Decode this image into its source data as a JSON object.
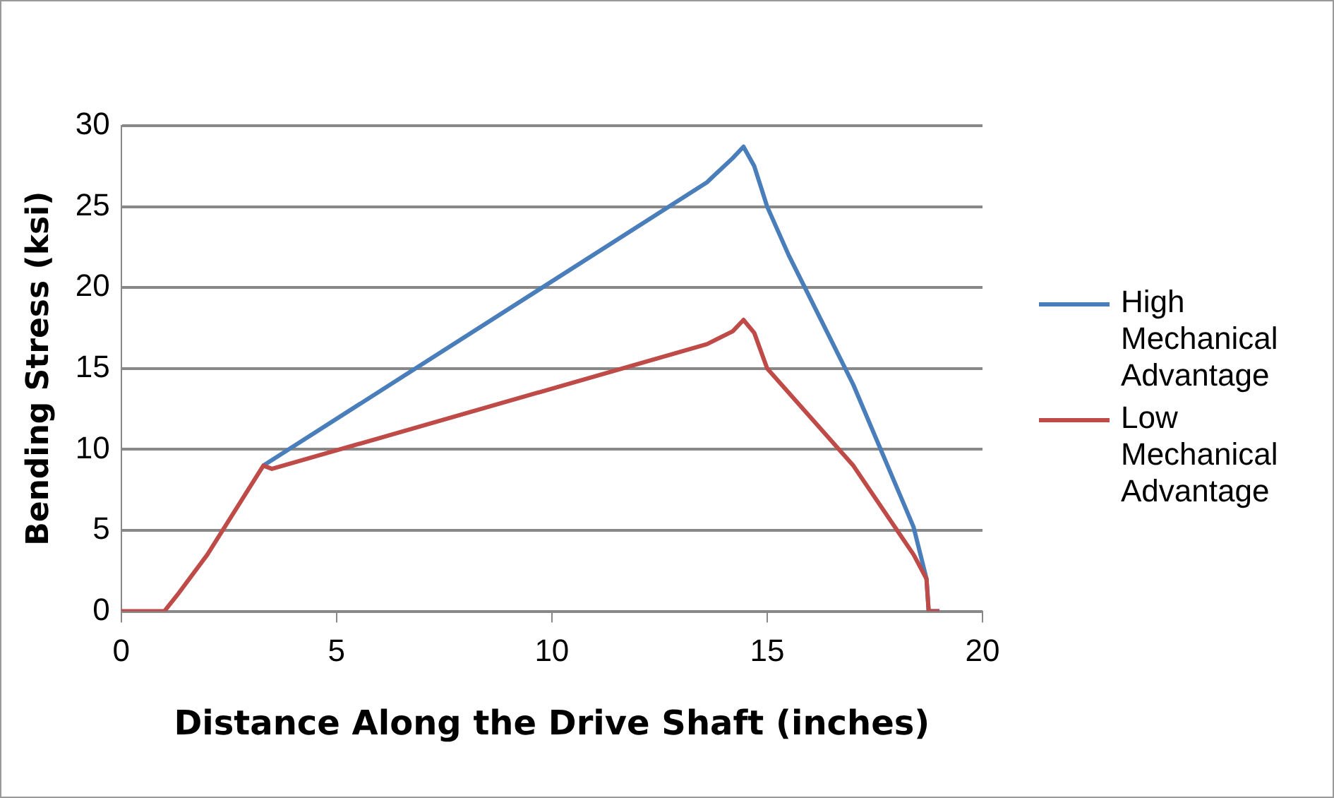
{
  "chart_data": {
    "type": "line",
    "xlabel": "Distance Along the Drive Shaft (inches)",
    "ylabel": "Bending Stress (ksi)",
    "xlim": [
      0,
      20
    ],
    "xticks": [
      0,
      5,
      10,
      15,
      20
    ],
    "ylim": [
      0,
      30
    ],
    "yticks": [
      0,
      5,
      10,
      15,
      20,
      25,
      30
    ],
    "grid": "y",
    "legend": "right",
    "marker": "none",
    "line_style": "solid",
    "series": [
      {
        "name": "High Mechanical Advantage",
        "color": "#4a7ebb",
        "x": [
          3.3,
          13.6,
          14.2,
          14.45,
          14.7,
          15,
          15.5,
          17,
          18.4,
          18.7,
          18.75,
          19
        ],
        "values": [
          9,
          26.5,
          28,
          28.7,
          27.5,
          25,
          22,
          14,
          5.2,
          2,
          0,
          0
        ]
      },
      {
        "name": "Low Mechanical Advantage",
        "color": "#be4b48",
        "x": [
          0,
          1,
          1.3,
          2,
          3.3,
          3.5,
          13.6,
          14.2,
          14.45,
          14.7,
          15,
          17,
          18.4,
          18.7,
          18.75,
          19
        ],
        "values": [
          0,
          0,
          1,
          3.5,
          9,
          8.8,
          16.5,
          17.3,
          18,
          17.2,
          15,
          9,
          3.5,
          2,
          0,
          0
        ]
      }
    ]
  }
}
